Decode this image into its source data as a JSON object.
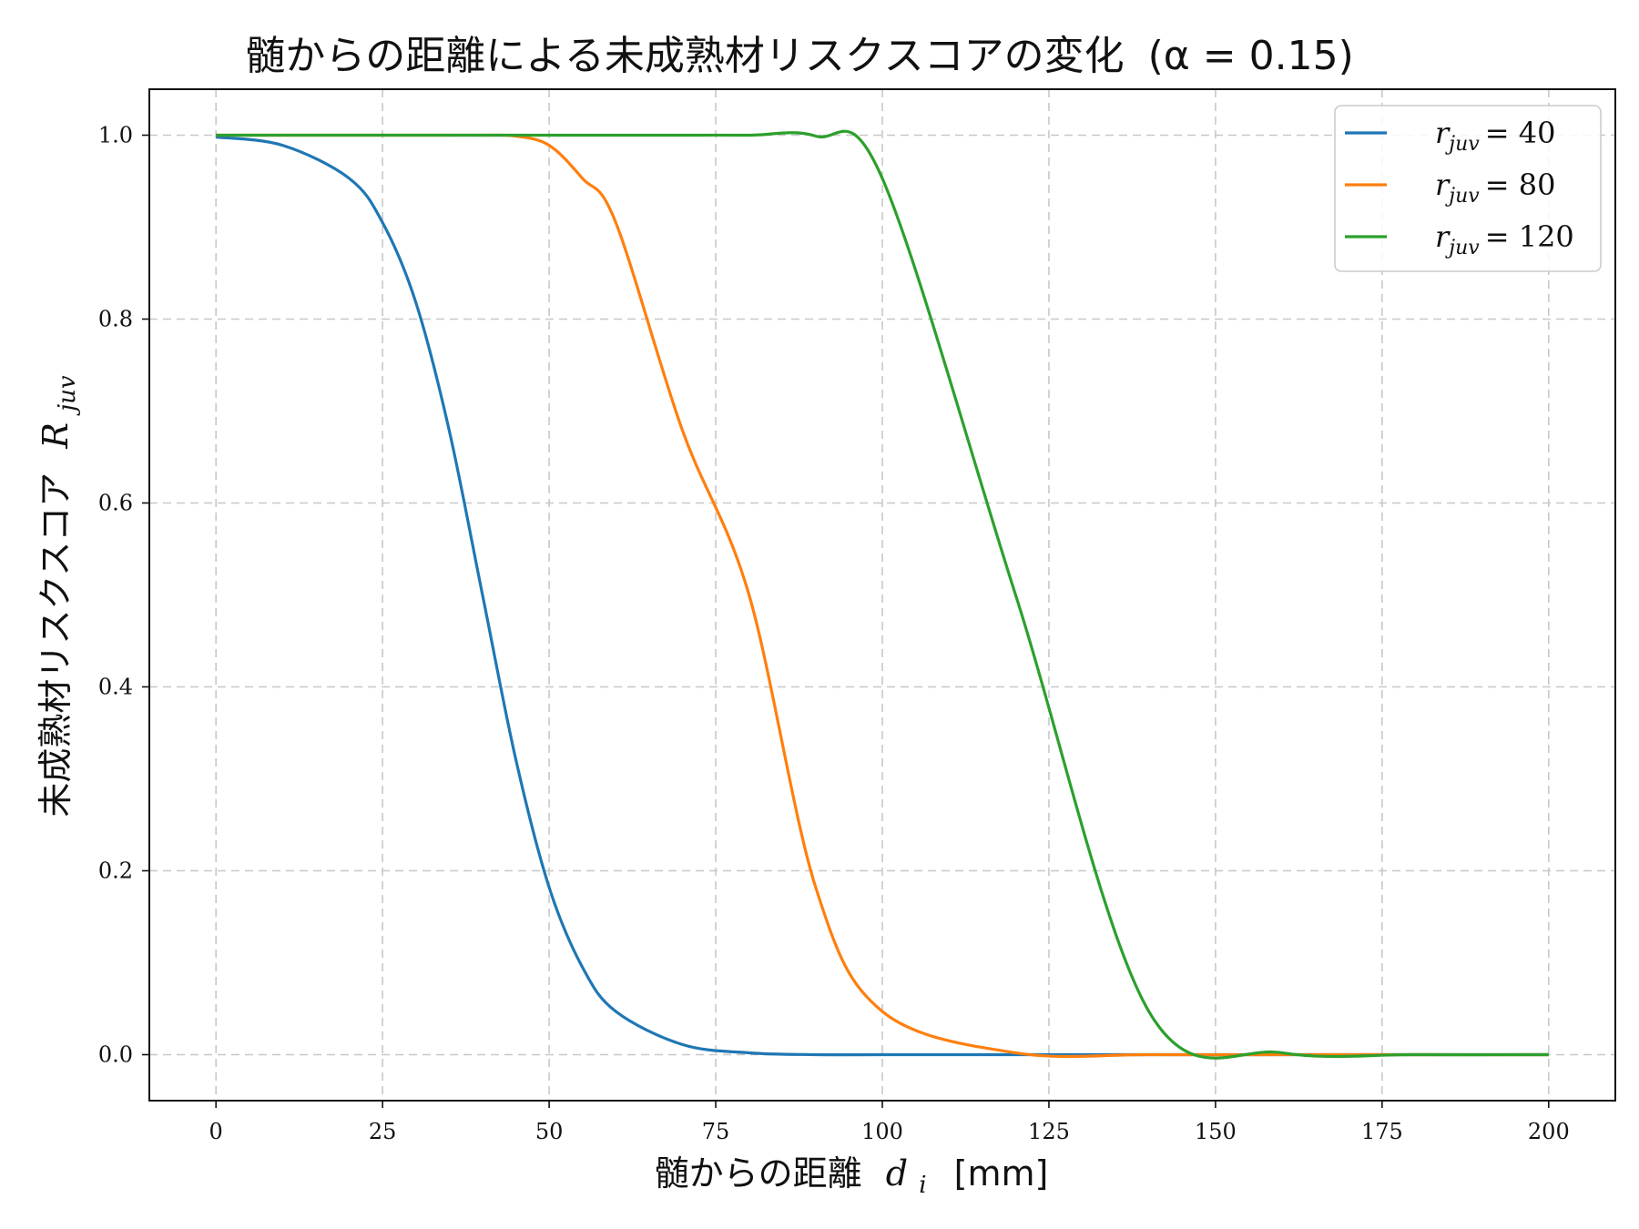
{
  "chart_data": {
    "type": "line",
    "title": "髄からの距離による未成熟材リスクスコアの変化 (α = 0.15)",
    "title_main": "髄からの距離による未成熟材リスクスコアの変化",
    "title_param": "(α = 0.15)",
    "xlabel": "髄からの距離 d_i [mm]",
    "xlabel_text": "髄からの距離",
    "xlabel_var": "d",
    "xlabel_sub": "i",
    "xlabel_unit": "[mm]",
    "ylabel": "未成熟材リスクスコア R_juv",
    "ylabel_text": "未成熟材リスクスコア",
    "ylabel_var": "R",
    "ylabel_sub": "juv",
    "xlim": [
      -10,
      210
    ],
    "ylim": [
      -0.05,
      1.05
    ],
    "xticks": [
      0,
      25,
      50,
      75,
      100,
      125,
      150,
      175,
      200
    ],
    "xtick_labels": [
      "0",
      "25",
      "50",
      "75",
      "100",
      "125",
      "150",
      "175",
      "200"
    ],
    "yticks": [
      0.0,
      0.2,
      0.4,
      0.6,
      0.8,
      1.0
    ],
    "ytick_labels": [
      "0.0",
      "0.2",
      "0.4",
      "0.6",
      "0.8",
      "1.0"
    ],
    "grid": true,
    "legend_position": "top-right",
    "x": [
      0,
      10,
      20,
      25,
      30,
      35,
      40,
      45,
      50,
      55,
      60,
      70,
      80,
      90,
      100,
      120,
      140,
      160,
      180,
      200
    ],
    "series": [
      {
        "name": "r_juv = 40",
        "legend_var": "r",
        "legend_sub": "juv",
        "legend_value": "= 40",
        "color": "#1f77b4",
        "values": [
          0.998,
          0.989,
          0.953,
          0.905,
          0.818,
          0.679,
          0.5,
          0.321,
          0.182,
          0.095,
          0.047,
          0.011,
          0.002,
          0.0,
          0.0,
          0.0,
          0.0,
          0.0,
          0.0,
          0.0
        ]
      },
      {
        "name": "r_juv = 80",
        "legend_var": "r",
        "legend_sub": "juv",
        "legend_value": "= 80",
        "color": "#ff7f0e",
        "values": [
          1.0,
          1.0,
          1.0,
          1.0,
          1.0,
          1.0,
          1.0,
          0.999,
          0.989,
          0.953,
          0.905,
          0.679,
          0.5,
          0.182,
          0.047,
          0.002,
          0.0,
          0.0,
          0.0,
          0.0
        ]
      },
      {
        "name": "r_juv = 120",
        "legend_var": "r",
        "legend_sub": "juv",
        "legend_value": "= 120",
        "color": "#2ca02c",
        "values": [
          1.0,
          1.0,
          1.0,
          1.0,
          1.0,
          1.0,
          1.0,
          1.0,
          1.0,
          1.0,
          1.0,
          1.0,
          1.0,
          0.999,
          0.953,
          0.5,
          0.047,
          0.002,
          0.0,
          0.0
        ]
      }
    ]
  }
}
